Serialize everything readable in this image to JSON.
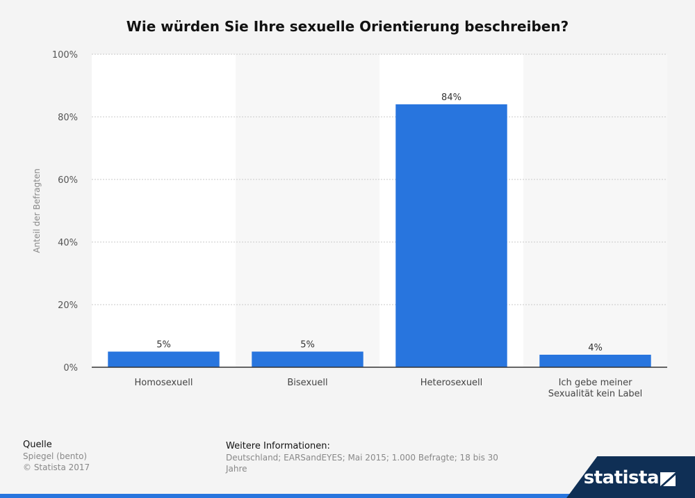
{
  "chart_data": {
    "type": "bar",
    "title": "Wie würden Sie Ihre sexuelle Orientierung beschreiben?",
    "ylabel": "Anteil der Befragten",
    "xlabel": "",
    "ylim": [
      0,
      100
    ],
    "yticks": [
      0,
      20,
      40,
      60,
      80,
      100
    ],
    "ytick_labels": [
      "0%",
      "20%",
      "40%",
      "60%",
      "80%",
      "100%"
    ],
    "categories": [
      [
        "Homosexuell"
      ],
      [
        "Bisexuell"
      ],
      [
        "Heterosexuell"
      ],
      [
        "Ich gebe meiner",
        "Sexualität kein Label"
      ]
    ],
    "values": [
      5,
      5,
      84,
      4
    ],
    "value_labels": [
      "5%",
      "5%",
      "84%",
      "4%"
    ],
    "grid": true,
    "bar_color": "#2875de"
  },
  "footer": {
    "source_heading": "Quelle",
    "source_lines": [
      "Spiegel (bento)",
      "© Statista 2017"
    ],
    "info_heading": "Weitere Informationen:",
    "info_text": "Deutschland; EARSandEYES; Mai 2015; 1.000 Befragte; 18 bis 30 Jahre"
  },
  "brand": {
    "name": "statista",
    "color": "#0f2f55"
  }
}
